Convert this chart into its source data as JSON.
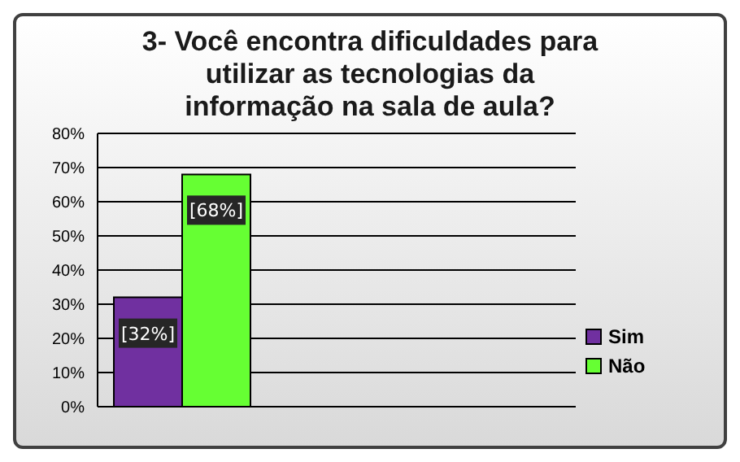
{
  "chart_data": {
    "type": "bar",
    "title": "3- Você encontra dificuldades para utilizar as tecnologias da informação na sala de aula?",
    "categories": [
      null
    ],
    "series": [
      {
        "name": "Sim",
        "color": "#7030a0",
        "values": [
          32
        ],
        "value_labels": [
          "[32%]"
        ]
      },
      {
        "name": "Não",
        "color": "#66ff33",
        "values": [
          68
        ],
        "value_labels": [
          "[68%]"
        ]
      }
    ],
    "ylim": [
      0,
      80
    ],
    "yticks": [
      {
        "value": 0,
        "label": "0%"
      },
      {
        "value": 10,
        "label": "10%"
      },
      {
        "value": 20,
        "label": "20%"
      },
      {
        "value": 30,
        "label": "30%"
      },
      {
        "value": 40,
        "label": "40%"
      },
      {
        "value": 50,
        "label": "50%"
      },
      {
        "value": 60,
        "label": "60%"
      },
      {
        "value": 70,
        "label": "70%"
      },
      {
        "value": 80,
        "label": "80%"
      }
    ],
    "grid": "y",
    "legend": "right"
  }
}
